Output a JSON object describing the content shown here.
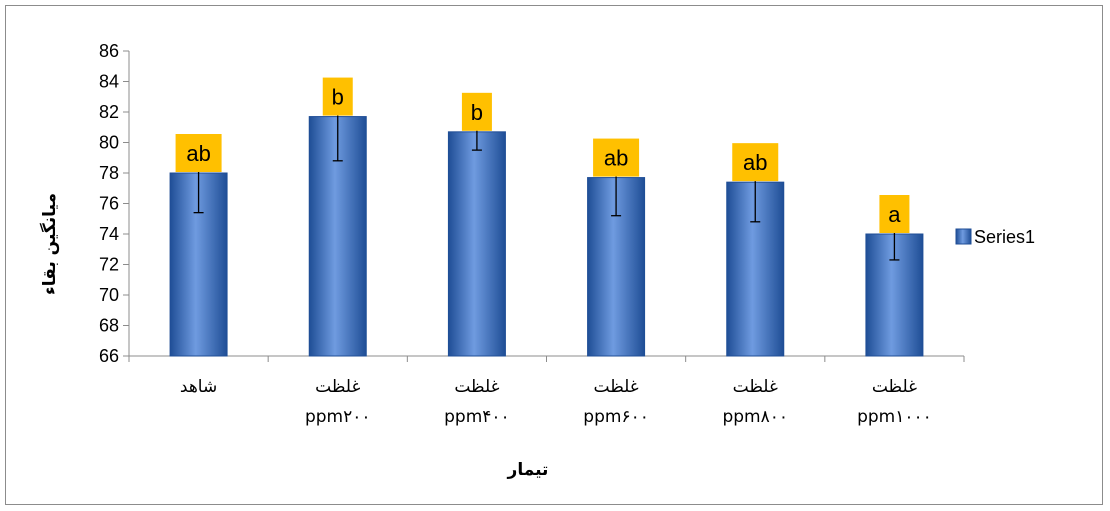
{
  "chart_data": {
    "type": "bar",
    "categories": [
      [
        "شاهد"
      ],
      [
        "غلظت",
        "ppm۲۰۰"
      ],
      [
        "غلظت",
        "ppm۴۰۰"
      ],
      [
        "غلظت",
        "ppm۶۰۰"
      ],
      [
        "غلظت",
        "ppm۸۰۰"
      ],
      [
        "غلظت",
        "ppm۱۰۰۰"
      ]
    ],
    "series": [
      {
        "name": "Series1",
        "values": [
          78.0,
          81.7,
          80.7,
          77.7,
          77.4,
          74.0
        ],
        "error_high": [
          79.4,
          82.3,
          81.7,
          78.2,
          78.5,
          74.6
        ],
        "error_low": [
          75.4,
          78.8,
          79.5,
          75.2,
          74.8,
          72.3
        ],
        "annotations": [
          "ab",
          "b",
          "b",
          "ab",
          "ab",
          "a"
        ]
      }
    ],
    "xlabel": "تیمار",
    "ylabel": "میانگین بقاء",
    "ylim": [
      66,
      86
    ],
    "yticks": [
      66,
      68,
      70,
      72,
      74,
      76,
      78,
      80,
      82,
      84,
      86
    ],
    "grid": false,
    "legend": "right",
    "colors": {
      "bar": "#4a7ac7",
      "bar_dark": "#1f4e96",
      "bar_light": "#6f9be0",
      "label_box": "#ffc000",
      "axis": "#8c8c8c"
    }
  }
}
